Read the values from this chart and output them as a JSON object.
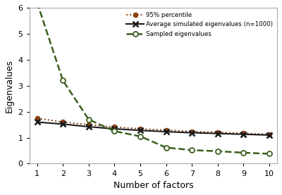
{
  "x": [
    1,
    2,
    3,
    4,
    5,
    6,
    7,
    8,
    9,
    10
  ],
  "sampled_eigenvalues": [
    6.2,
    3.2,
    1.7,
    1.25,
    1.05,
    0.62,
    0.52,
    0.48,
    0.42,
    0.38
  ],
  "avg_simulated": [
    1.6,
    1.52,
    1.42,
    1.34,
    1.28,
    1.23,
    1.19,
    1.16,
    1.13,
    1.1
  ],
  "percentile_95": [
    1.75,
    1.6,
    1.5,
    1.41,
    1.34,
    1.29,
    1.24,
    1.21,
    1.17,
    1.13
  ],
  "sampled_color": "#3a5e1f",
  "avg_color": "#1a1a1a",
  "pct_color": "#8B4010",
  "xlabel": "Number of factors",
  "ylabel": "Eigenvalues",
  "ylim": [
    0,
    6
  ],
  "legend_sampled": "Sampled eigenvalues",
  "legend_avg": "Average simulated eigenvalues (n=1000)",
  "legend_pct": "95% percentile",
  "yticks": [
    0,
    1,
    2,
    3,
    4,
    5,
    6
  ]
}
